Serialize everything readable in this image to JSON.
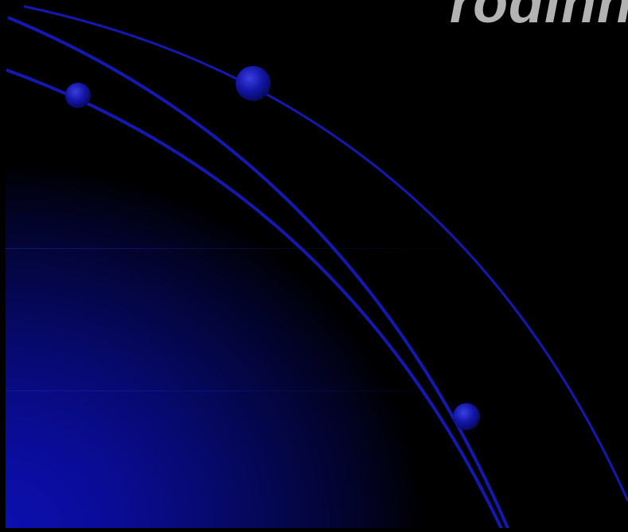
{
  "slide": {
    "title": "rodinn",
    "background_color": "#000000",
    "glow_color": "#0d0fb0",
    "arc_color": "#1418b0",
    "title_color": "#b3b3b3"
  }
}
